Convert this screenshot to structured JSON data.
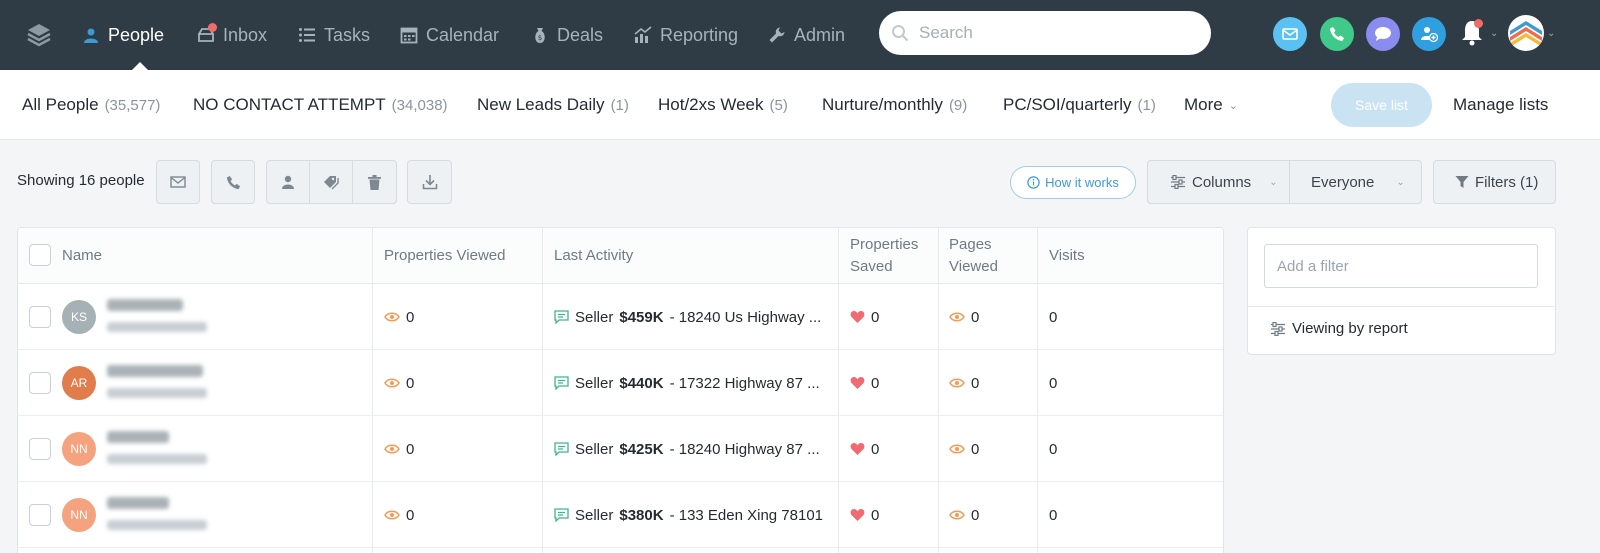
{
  "nav": {
    "items": [
      {
        "label": "People",
        "icon": "person-icon",
        "active": true
      },
      {
        "label": "Inbox",
        "icon": "inbox-icon",
        "badge": true
      },
      {
        "label": "Tasks",
        "icon": "list-icon"
      },
      {
        "label": "Calendar",
        "icon": "calendar-icon"
      },
      {
        "label": "Deals",
        "icon": "money-bag-icon"
      },
      {
        "label": "Reporting",
        "icon": "chart-icon"
      },
      {
        "label": "Admin",
        "icon": "wrench-icon"
      }
    ],
    "search_placeholder": "Search",
    "colors": {
      "bar": "#2f3c45",
      "email": "#5bc0f2",
      "call": "#3fc98a",
      "chat": "#8a8cf0",
      "add": "#2f9fe0",
      "badge": "#f26b6b"
    }
  },
  "lists": {
    "tabs": [
      {
        "label": "All People",
        "count": "(35,577)"
      },
      {
        "label": "NO CONTACT ATTEMPT",
        "count": "(34,038)"
      },
      {
        "label": "New Leads Daily",
        "count": "(1)"
      },
      {
        "label": "Hot/2xs Week",
        "count": "(5)"
      },
      {
        "label": "Nurture/monthly",
        "count": "(9)"
      },
      {
        "label": "PC/SOI/quarterly",
        "count": "(1)"
      }
    ],
    "more_label": "More",
    "save_label": "Save list",
    "manage_label": "Manage lists"
  },
  "toolbar": {
    "showing": "Showing 16 people",
    "how_it_works": "How it works",
    "columns": "Columns",
    "everyone": "Everyone",
    "filters": "Filters (1)"
  },
  "table": {
    "headers": {
      "name": "Name",
      "properties_viewed": "Properties Viewed",
      "last_activity": "Last Activity",
      "properties_saved_1": "Properties",
      "properties_saved_2": "Saved",
      "pages_viewed_1": "Pages",
      "pages_viewed_2": "Viewed",
      "visits": "Visits"
    },
    "rows": [
      {
        "initials": "KS",
        "avatar_color": "#a6b1b6",
        "properties_viewed": "0",
        "activity_type": "Seller",
        "price": "$459K",
        "address": "- 18240 Us Highway ...",
        "saved": "0",
        "pages": "0",
        "visits": "0"
      },
      {
        "initials": "AR",
        "avatar_color": "#e07d4a",
        "properties_viewed": "0",
        "activity_type": "Seller",
        "price": "$440K",
        "address": "- 17322 Highway 87 ...",
        "saved": "0",
        "pages": "0",
        "visits": "0"
      },
      {
        "initials": "NN",
        "avatar_color": "#f5a27e",
        "properties_viewed": "0",
        "activity_type": "Seller",
        "price": "$425K",
        "address": "- 18240 Highway 87 ...",
        "saved": "0",
        "pages": "0",
        "visits": "0"
      },
      {
        "initials": "NN",
        "avatar_color": "#f5a27e",
        "properties_viewed": "0",
        "activity_type": "Seller",
        "price": "$380K",
        "address": "- 133 Eden Xing 78101",
        "saved": "0",
        "pages": "0",
        "visits": "0"
      }
    ]
  },
  "filters_panel": {
    "placeholder": "Add a filter",
    "viewing": "Viewing by report"
  }
}
